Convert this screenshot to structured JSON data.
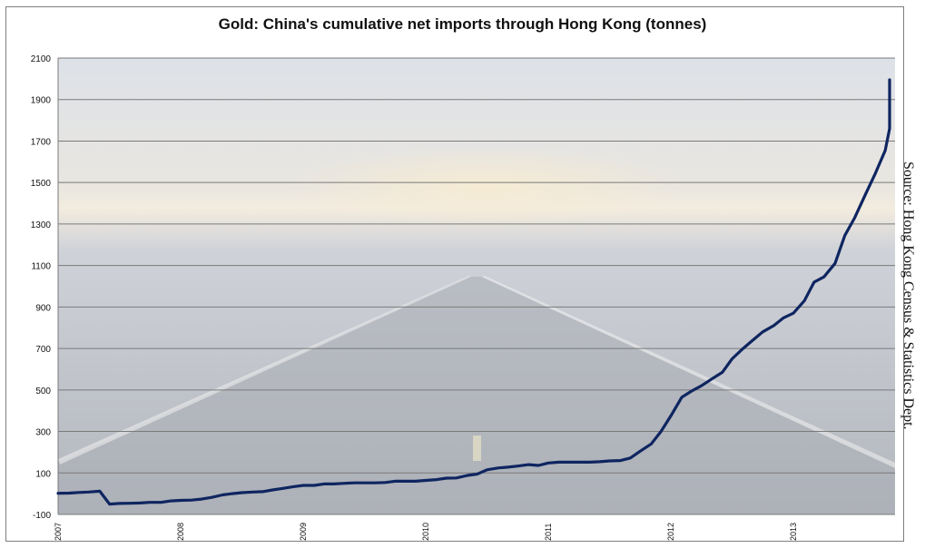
{
  "chart_data": {
    "type": "line",
    "title": "Gold: China's cumulative net imports through Hong Kong (tonnes)",
    "source": "Source: Hong Kong Census & Statistics Dept.",
    "xlabel": "",
    "ylabel": "",
    "ylim": [
      -100,
      2100
    ],
    "y_ticks": [
      "2100",
      "1900",
      "1700",
      "1500",
      "1300",
      "1100",
      "900",
      "700",
      "500",
      "300",
      "100",
      "-100"
    ],
    "x_ticks": [
      "2007",
      "2008",
      "2009",
      "2010",
      "2011",
      "2012",
      "2013"
    ],
    "x_range": [
      2007.0,
      2013.83
    ],
    "grid": true,
    "colors": {
      "line": "#0e2560",
      "grid": "#7a7a7a",
      "plot_bg_top": "#d9dde4",
      "plot_bg_bottom": "#b3b8c0"
    },
    "series": [
      {
        "values": [
          [
            2007.08,
            2
          ],
          [
            2007.17,
            3
          ],
          [
            2007.25,
            6
          ],
          [
            2007.33,
            8
          ],
          [
            2007.42,
            12
          ],
          [
            2007.5,
            -50
          ],
          [
            2007.58,
            -47
          ],
          [
            2007.67,
            -46
          ],
          [
            2007.75,
            -45
          ],
          [
            2007.83,
            -42
          ],
          [
            2007.92,
            -42
          ],
          [
            2008.0,
            -35
          ],
          [
            2008.08,
            -32
          ],
          [
            2008.17,
            -31
          ],
          [
            2008.25,
            -26
          ],
          [
            2008.33,
            -18
          ],
          [
            2008.42,
            -6
          ],
          [
            2008.5,
            0
          ],
          [
            2008.58,
            5
          ],
          [
            2008.67,
            8
          ],
          [
            2008.75,
            10
          ],
          [
            2008.83,
            18
          ],
          [
            2008.92,
            26
          ],
          [
            2009.0,
            34
          ],
          [
            2009.08,
            40
          ],
          [
            2009.17,
            40
          ],
          [
            2009.25,
            47
          ],
          [
            2009.33,
            47
          ],
          [
            2009.42,
            50
          ],
          [
            2009.5,
            52
          ],
          [
            2009.58,
            52
          ],
          [
            2009.67,
            52
          ],
          [
            2009.75,
            54
          ],
          [
            2009.83,
            60
          ],
          [
            2009.92,
            60
          ],
          [
            2010.0,
            60
          ],
          [
            2010.08,
            64
          ],
          [
            2010.17,
            68
          ],
          [
            2010.25,
            75
          ],
          [
            2010.33,
            76
          ],
          [
            2010.42,
            88
          ],
          [
            2010.5,
            94
          ],
          [
            2010.58,
            115
          ],
          [
            2010.67,
            124
          ],
          [
            2010.75,
            128
          ],
          [
            2010.83,
            133
          ],
          [
            2010.92,
            140
          ],
          [
            2011.0,
            136
          ],
          [
            2011.08,
            148
          ],
          [
            2011.17,
            152
          ],
          [
            2011.25,
            152
          ],
          [
            2011.33,
            152
          ],
          [
            2011.42,
            152
          ],
          [
            2011.5,
            154
          ],
          [
            2011.58,
            158
          ],
          [
            2011.67,
            160
          ],
          [
            2011.75,
            172
          ],
          [
            2011.83,
            205
          ],
          [
            2011.92,
            240
          ],
          [
            2012.0,
            300
          ],
          [
            2012.08,
            375
          ],
          [
            2012.17,
            465
          ],
          [
            2012.25,
            495
          ],
          [
            2012.33,
            520
          ],
          [
            2012.42,
            555
          ],
          [
            2012.5,
            585
          ],
          [
            2012.58,
            650
          ],
          [
            2012.67,
            700
          ],
          [
            2012.75,
            740
          ],
          [
            2012.83,
            780
          ],
          [
            2012.92,
            810
          ],
          [
            2013.0,
            848
          ],
          [
            2013.08,
            870
          ],
          [
            2013.17,
            930
          ],
          [
            2013.25,
            1020
          ],
          [
            2013.33,
            1045
          ],
          [
            2013.42,
            1110
          ],
          [
            2013.5,
            1245
          ],
          [
            2013.58,
            1330
          ],
          [
            2013.67,
            1445
          ],
          [
            2013.75,
            1545
          ],
          [
            2013.83,
            1655
          ],
          [
            2013.92,
            1760
          ],
          [
            2014.0,
            1870
          ],
          [
            2014.08,
            1995
          ]
        ]
      }
    ]
  }
}
